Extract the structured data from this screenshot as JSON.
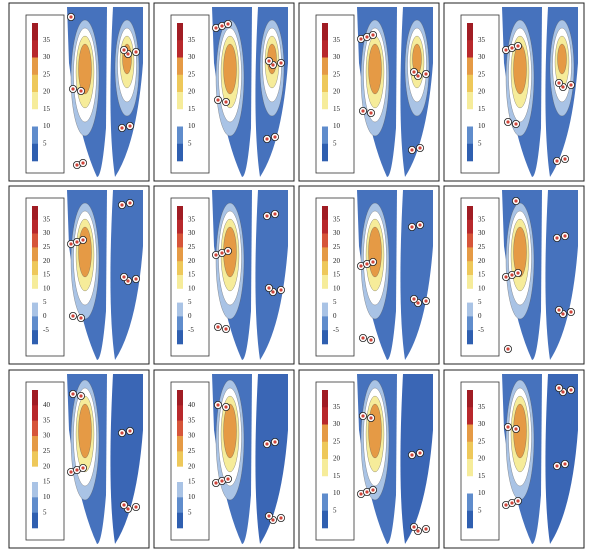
{
  "panels": [
    {
      "colorbar_ticks": [
        35,
        30,
        25,
        20,
        15,
        10,
        5
      ]
    },
    {
      "colorbar_ticks": [
        35,
        30,
        25,
        20,
        15,
        10,
        5
      ]
    },
    {
      "colorbar_ticks": [
        35,
        30,
        25,
        20,
        15,
        10,
        5
      ]
    },
    {
      "colorbar_ticks": [
        35,
        30,
        25,
        20,
        15,
        10,
        5
      ]
    },
    {
      "colorbar_ticks": [
        35,
        30,
        25,
        20,
        15,
        10,
        5,
        0,
        -5
      ]
    },
    {
      "colorbar_ticks": [
        35,
        30,
        25,
        20,
        15,
        10,
        5,
        0,
        -5
      ]
    },
    {
      "colorbar_ticks": [
        35,
        30,
        25,
        20,
        15,
        10,
        5,
        0,
        -5
      ]
    },
    {
      "colorbar_ticks": [
        35,
        30,
        25,
        20,
        15,
        10,
        5,
        0,
        -5
      ]
    },
    {
      "colorbar_ticks": [
        40,
        35,
        30,
        25,
        20,
        15,
        10,
        5
      ]
    },
    {
      "colorbar_ticks": [
        40,
        35,
        30,
        25,
        20,
        15,
        10,
        5
      ]
    },
    {
      "colorbar_ticks": [
        35,
        30,
        25,
        20,
        15,
        10,
        5
      ]
    },
    {
      "colorbar_ticks": [
        35,
        30,
        25,
        20,
        15,
        10,
        5
      ]
    }
  ]
}
